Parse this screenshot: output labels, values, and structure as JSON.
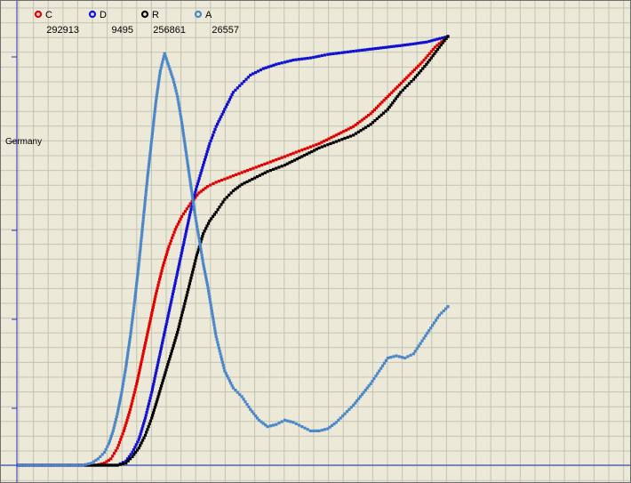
{
  "window": {
    "region_label": "Germany"
  },
  "legend": [
    {
      "name": "C",
      "value": "292913",
      "color": "#e00000"
    },
    {
      "name": "D",
      "value": "9495",
      "color": "#1010d0"
    },
    {
      "name": "R",
      "value": "256861",
      "color": "#000000"
    },
    {
      "name": "A",
      "value": "26557",
      "color": "#4a86c8"
    }
  ],
  "chart_data": {
    "type": "scatter",
    "title": "",
    "xlabel": "",
    "ylabel": "",
    "grid": true,
    "legend_placement": "top-left",
    "xlim": [
      0,
      100
    ],
    "ylim": [
      0,
      100
    ],
    "series": [
      {
        "name": "C",
        "color": "#e00000",
        "points": [
          [
            0,
            0
          ],
          [
            18,
            0
          ],
          [
            20,
            0.5
          ],
          [
            21.5,
            1.5
          ],
          [
            23,
            4
          ],
          [
            24.5,
            8
          ],
          [
            26,
            13
          ],
          [
            27.5,
            19
          ],
          [
            29,
            26
          ],
          [
            30.5,
            33
          ],
          [
            32,
            40
          ],
          [
            33.5,
            46
          ],
          [
            35,
            51
          ],
          [
            36.5,
            55
          ],
          [
            38,
            58
          ],
          [
            40,
            61
          ],
          [
            42,
            63.5
          ],
          [
            44,
            65
          ],
          [
            46,
            66
          ],
          [
            50,
            67.5
          ],
          [
            54,
            69
          ],
          [
            58,
            70.5
          ],
          [
            62,
            72
          ],
          [
            66,
            73.5
          ],
          [
            70,
            75
          ],
          [
            74,
            77
          ],
          [
            78,
            79
          ],
          [
            82,
            82
          ],
          [
            86,
            86
          ],
          [
            90,
            90
          ],
          [
            94,
            94
          ],
          [
            97,
            97.5
          ],
          [
            100,
            100
          ]
        ]
      },
      {
        "name": "D",
        "color": "#1010d0",
        "points": [
          [
            0,
            0
          ],
          [
            23,
            0
          ],
          [
            25,
            1
          ],
          [
            26.5,
            3
          ],
          [
            28,
            6
          ],
          [
            29.5,
            11
          ],
          [
            31,
            17
          ],
          [
            32.5,
            24
          ],
          [
            34,
            31
          ],
          [
            35.5,
            38
          ],
          [
            37,
            45
          ],
          [
            38.5,
            52
          ],
          [
            40,
            59
          ],
          [
            41.5,
            65
          ],
          [
            43,
            70
          ],
          [
            44.5,
            75
          ],
          [
            46,
            79
          ],
          [
            48,
            83
          ],
          [
            50,
            87
          ],
          [
            52,
            89
          ],
          [
            54,
            91
          ],
          [
            57,
            92.5
          ],
          [
            60,
            93.5
          ],
          [
            64,
            94.5
          ],
          [
            68,
            95
          ],
          [
            72,
            95.8
          ],
          [
            76,
            96.3
          ],
          [
            80,
            96.8
          ],
          [
            85,
            97.4
          ],
          [
            90,
            98
          ],
          [
            95,
            98.7
          ],
          [
            100,
            100
          ]
        ]
      },
      {
        "name": "R",
        "color": "#000000",
        "points": [
          [
            0,
            0
          ],
          [
            23,
            0
          ],
          [
            25,
            0.5
          ],
          [
            26.5,
            2
          ],
          [
            28,
            4
          ],
          [
            29.5,
            7
          ],
          [
            31,
            11
          ],
          [
            32.5,
            16
          ],
          [
            34,
            21
          ],
          [
            35.5,
            26
          ],
          [
            37,
            31
          ],
          [
            38.5,
            37
          ],
          [
            40,
            43
          ],
          [
            41.5,
            49
          ],
          [
            43,
            54
          ],
          [
            44.5,
            57
          ],
          [
            46,
            59
          ],
          [
            48,
            62
          ],
          [
            50,
            64
          ],
          [
            52,
            65.5
          ],
          [
            55,
            67
          ],
          [
            58,
            68.5
          ],
          [
            62,
            70
          ],
          [
            66,
            72
          ],
          [
            70,
            74
          ],
          [
            74,
            75.5
          ],
          [
            78,
            77
          ],
          [
            82,
            79.5
          ],
          [
            86,
            83
          ],
          [
            89,
            87
          ],
          [
            92,
            90
          ],
          [
            95,
            93.5
          ],
          [
            98,
            97.5
          ],
          [
            100,
            100
          ]
        ]
      },
      {
        "name": "A",
        "color": "#4a86c8",
        "points": [
          [
            0,
            0
          ],
          [
            15,
            0
          ],
          [
            17,
            0.5
          ],
          [
            18.5,
            1.5
          ],
          [
            20,
            3
          ],
          [
            21,
            5
          ],
          [
            22,
            8
          ],
          [
            23,
            12
          ],
          [
            24,
            17
          ],
          [
            25,
            23
          ],
          [
            26,
            30
          ],
          [
            27,
            38
          ],
          [
            28,
            47
          ],
          [
            29,
            57
          ],
          [
            30,
            67
          ],
          [
            31,
            76
          ],
          [
            32,
            85
          ],
          [
            33,
            92
          ],
          [
            34,
            96
          ],
          [
            35,
            93
          ],
          [
            36,
            90
          ],
          [
            37,
            86
          ],
          [
            38,
            80
          ],
          [
            39,
            73
          ],
          [
            40,
            66
          ],
          [
            41,
            59
          ],
          [
            42,
            53
          ],
          [
            43,
            47
          ],
          [
            44,
            42
          ],
          [
            45,
            36
          ],
          [
            46,
            30
          ],
          [
            47,
            26
          ],
          [
            48,
            22
          ],
          [
            50,
            18
          ],
          [
            52,
            16
          ],
          [
            54,
            13
          ],
          [
            56,
            10.5
          ],
          [
            58,
            9
          ],
          [
            60,
            9.5
          ],
          [
            62,
            10.5
          ],
          [
            64,
            10
          ],
          [
            66,
            9
          ],
          [
            68,
            8
          ],
          [
            70,
            8
          ],
          [
            72,
            8.5
          ],
          [
            74,
            10
          ],
          [
            76,
            12
          ],
          [
            78,
            14
          ],
          [
            80,
            16.5
          ],
          [
            82,
            19
          ],
          [
            84,
            22
          ],
          [
            86,
            25
          ],
          [
            88,
            25.5
          ],
          [
            90,
            25
          ],
          [
            92,
            26
          ],
          [
            94,
            29
          ],
          [
            96,
            32
          ],
          [
            98,
            35
          ],
          [
            100,
            37
          ]
        ]
      }
    ]
  }
}
